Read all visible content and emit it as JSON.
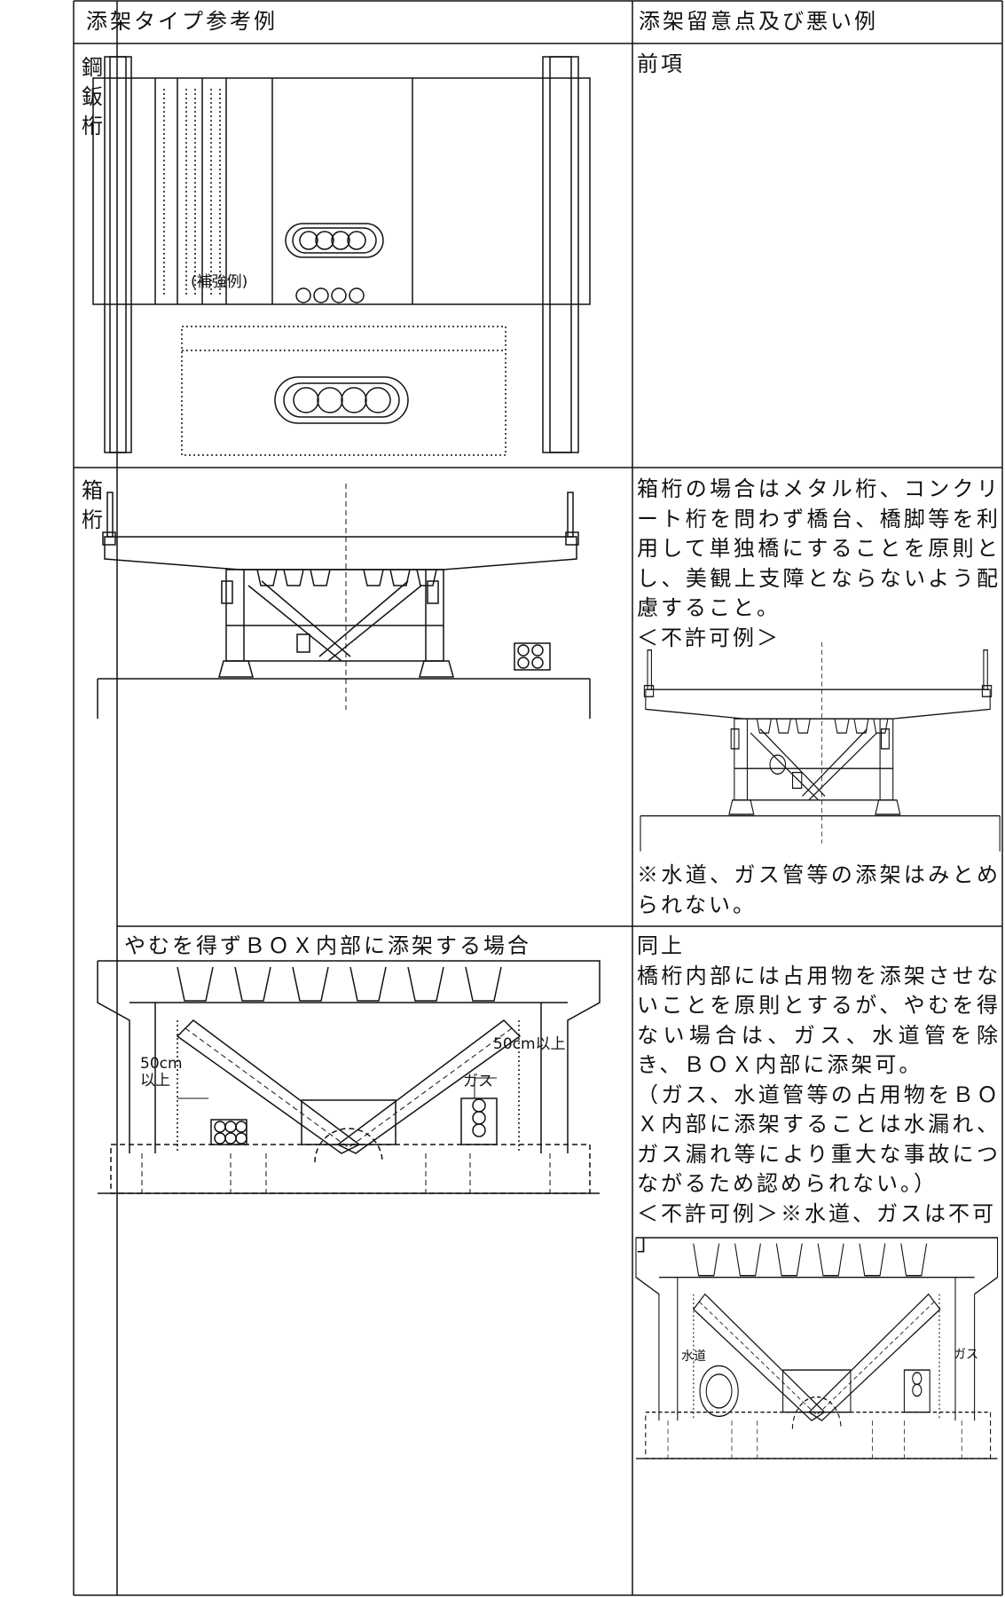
{
  "header": {
    "type_column": "添架タイプ参考例",
    "notes_column": "添架留意点及び悪い例"
  },
  "rows": [
    {
      "label": "鋼鈑桁",
      "figure_labels": [
        "(補強例)"
      ],
      "notes": [
        "前項"
      ]
    },
    {
      "label": "箱桁",
      "notes": [
        "箱桁の場合はメタル桁、コンクリート桁を問わず橋台、橋脚等を利用して単独橋にすることを原則とし、美観上支障とならないよう配慮すること。",
        "＜不許可例＞",
        "※水道、ガス管等の添架はみとめられない。"
      ]
    },
    {
      "caption": "やむを得ずＢＯＸ内部に添架する場合",
      "figure_labels": [
        "50cm以上",
        "50cm\n以上",
        "ガス"
      ],
      "notes": [
        "同上",
        "橋桁内部には占用物を添架させないことを原則とするが、やむを得ない場合は、ガス、水道管を除き、ＢＯＸ内部に添架可。",
        "（ガス、水道管等の占用物をＢＯＸ内部に添架することは水漏れ、ガス漏れ等により重大な事故につながるため認められない。）",
        "＜不許可例＞※水道、ガスは不可",
        "」"
      ],
      "note_figure_labels": [
        "水道",
        "ガス"
      ]
    }
  ]
}
